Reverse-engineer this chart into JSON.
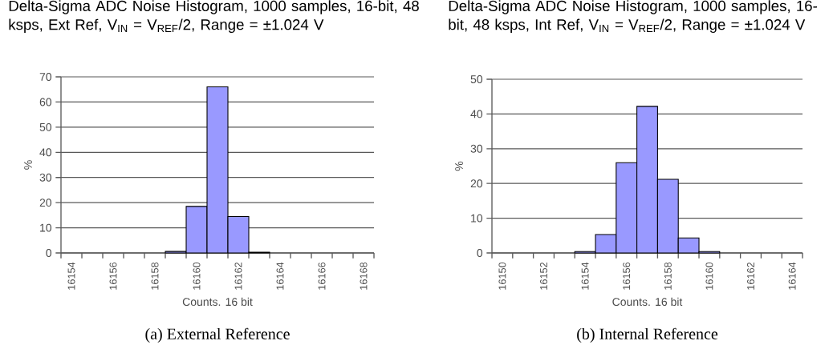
{
  "chart_data": [
    {
      "type": "bar",
      "title": "Delta-Sigma ADC Noise Histogram, 1000 samples, 16-bit, 48 ksps, Ext Ref, V$_{IN}$ = V$_{REF}$/2, Range = ±1.024 V",
      "xlabel": "Counts. 16 bit",
      "ylabel": "%",
      "categories": [
        "16154",
        null,
        "16156",
        null,
        "16158",
        null,
        "16160",
        null,
        "16162",
        null,
        "16164",
        null,
        "16166",
        null,
        "16168"
      ],
      "values": [
        null,
        null,
        null,
        null,
        null,
        0.6,
        18.5,
        66,
        14.5,
        0.3,
        null,
        null,
        null,
        null,
        null
      ],
      "color": "#9999ff",
      "ylim": [
        0,
        70
      ],
      "yticks": [
        0,
        10,
        20,
        30,
        40,
        50,
        60,
        70
      ],
      "grid": "y",
      "annotations": [
        "(a) External Reference"
      ]
    },
    {
      "type": "bar",
      "title": "Delta-Sigma ADC Noise Histogram, 1000 samples, 16-bit, 48 ksps, Int Ref, V$_{IN}$ = V$_{REF}$/2, Range = ±1.024 V",
      "xlabel": "Counts. 16 bit",
      "ylabel": "%",
      "categories": [
        "16150",
        null,
        "16152",
        null,
        "16154",
        null,
        "16156",
        null,
        "16158",
        null,
        "16160",
        null,
        "16162",
        null,
        "16164"
      ],
      "values": [
        null,
        null,
        null,
        null,
        0.4,
        5.3,
        26,
        42.2,
        21.2,
        4.3,
        0.4,
        null,
        null,
        null,
        null
      ],
      "color": "#9999ff",
      "ylim": [
        0,
        50
      ],
      "yticks": [
        0,
        10,
        20,
        30,
        40,
        50
      ],
      "grid": "y",
      "annotations": [
        "(b) Internal Reference"
      ]
    }
  ]
}
